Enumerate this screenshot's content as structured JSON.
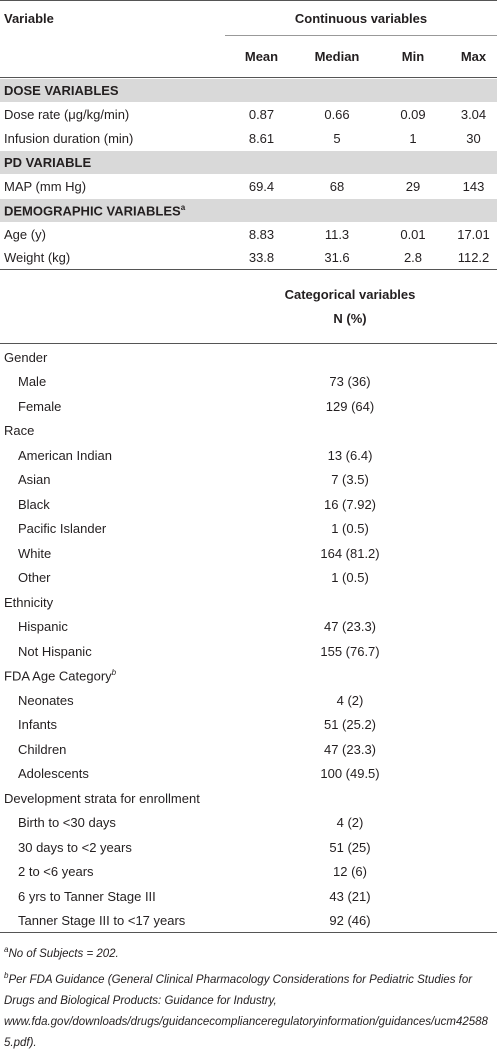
{
  "table": {
    "header": {
      "variable": "Variable",
      "group": "Continuous variables",
      "columns": [
        "Mean",
        "Median",
        "Min",
        "Max"
      ]
    },
    "sections": [
      {
        "title": "DOSE VARIABLES",
        "rows": [
          [
            "Dose rate (μg/kg/min)",
            "0.87",
            "0.66",
            "0.09",
            "3.04"
          ],
          [
            "Infusion duration (min)",
            "8.61",
            "5",
            "1",
            "30"
          ]
        ]
      },
      {
        "title": "PD VARIABLE",
        "rows": [
          [
            "MAP (mm Hg)",
            "69.4",
            "68",
            "29",
            "143"
          ]
        ]
      },
      {
        "title": "DEMOGRAPHIC VARIABLES",
        "sup": "a",
        "rows": [
          [
            "Age (y)",
            "8.83",
            "11.3",
            "0.01",
            "17.01"
          ],
          [
            "Weight (kg)",
            "33.8",
            "31.6",
            "2.8",
            "112.2"
          ]
        ]
      }
    ],
    "categorical": {
      "header": "Categorical variables",
      "subheader": "N (%)",
      "groups": [
        {
          "title": "Gender",
          "rows": [
            [
              "Male",
              "73 (36)"
            ],
            [
              "Female",
              "129 (64)"
            ]
          ]
        },
        {
          "title": "Race",
          "rows": [
            [
              "American Indian",
              "13 (6.4)"
            ],
            [
              "Asian",
              "7 (3.5)"
            ],
            [
              "Black",
              "16 (7.92)"
            ],
            [
              "Pacific Islander",
              "1 (0.5)"
            ],
            [
              "White",
              "164 (81.2)"
            ],
            [
              "Other",
              "1 (0.5)"
            ]
          ]
        },
        {
          "title": "Ethnicity",
          "rows": [
            [
              "Hispanic",
              "47 (23.3)"
            ],
            [
              "Not Hispanic",
              "155 (76.7)"
            ]
          ]
        },
        {
          "title": "FDA Age Category",
          "sup": "b",
          "rows": [
            [
              "Neonates",
              "4 (2)"
            ],
            [
              "Infants",
              "51 (25.2)"
            ],
            [
              "Children",
              "47 (23.3)"
            ],
            [
              "Adolescents",
              "100 (49.5)"
            ]
          ]
        },
        {
          "title": "Development strata for enrollment",
          "rows": [
            [
              "Birth to <30 days",
              "4 (2)"
            ],
            [
              "30 days to <2 years",
              "51 (25)"
            ],
            [
              "2 to <6 years",
              "12 (6)"
            ],
            [
              "6 yrs to Tanner Stage III",
              "43 (21)"
            ],
            [
              "Tanner Stage III to <17 years",
              "92 (46)"
            ]
          ]
        }
      ]
    }
  },
  "footnotes": [
    {
      "mark": "a",
      "text": "No of Subjects = 202."
    },
    {
      "mark": "b",
      "text": "Per FDA Guidance (General Clinical Pharmacology Considerations for Pediatric Studies for Drugs and Biological Products: Guidance for Industry, www.fda.gov/downloads/drugs/guidancecomplianceregulatoryinformation/guidances/ucm425885.pdf)."
    }
  ]
}
